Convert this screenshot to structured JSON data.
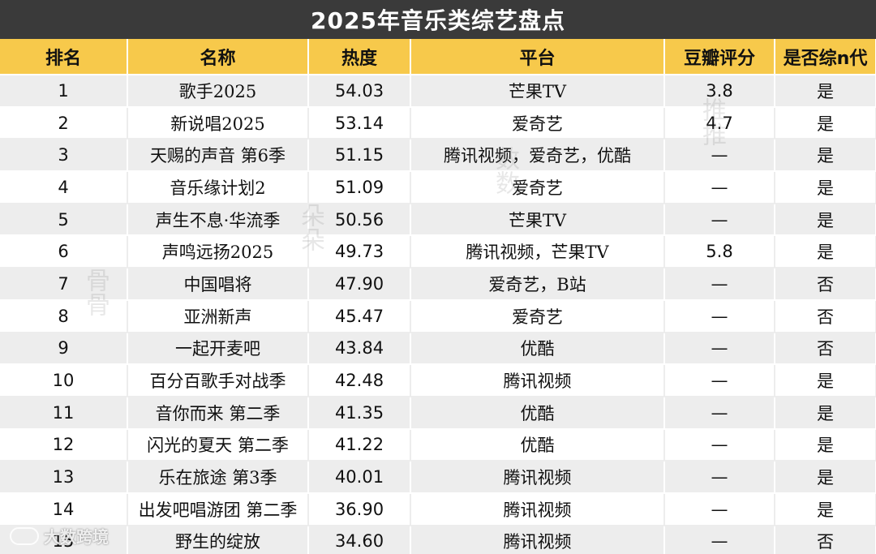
{
  "title": "2025年音乐类综艺盘点",
  "columns": [
    "排名",
    "名称",
    "热度",
    "平台",
    "豆瓣评分",
    "是否综n代"
  ],
  "rows": [
    [
      "1",
      "歌手2025",
      "54.03",
      "芒果TV",
      "3.8",
      "是"
    ],
    [
      "2",
      "新说唱2025",
      "53.14",
      "爱奇艺",
      "4.7",
      "是"
    ],
    [
      "3",
      "天赐的声音 第6季",
      "51.15",
      "腾讯视频，爱奇艺，优酷",
      "—",
      "是"
    ],
    [
      "4",
      "音乐缘计划2",
      "51.09",
      "爱奇艺",
      "—",
      "是"
    ],
    [
      "5",
      "声生不息·华流季",
      "50.56",
      "芒果TV",
      "—",
      "是"
    ],
    [
      "6",
      "声鸣远扬2025",
      "49.73",
      "腾讯视频，芒果TV",
      "5.8",
      "是"
    ],
    [
      "7",
      "中国唱将",
      "47.90",
      "爱奇艺，B站",
      "—",
      "否"
    ],
    [
      "8",
      "亚洲新声",
      "45.47",
      "爱奇艺",
      "—",
      "否"
    ],
    [
      "9",
      "一起开麦吧",
      "43.84",
      "优酷",
      "—",
      "否"
    ],
    [
      "10",
      "百分百歌手对战季",
      "42.48",
      "腾讯视频",
      "—",
      "是"
    ],
    [
      "11",
      "音你而来 第二季",
      "41.35",
      "优酷",
      "—",
      "是"
    ],
    [
      "12",
      "闪光的夏天 第二季",
      "41.22",
      "优酷",
      "—",
      "是"
    ],
    [
      "13",
      "乐在旅途 第3季",
      "40.01",
      "腾讯视频",
      "—",
      "是"
    ],
    [
      "14",
      "出发吧唱游团 第二季",
      "36.90",
      "腾讯视频",
      "—",
      "是"
    ],
    [
      "15",
      "野生的绽放",
      "34.60",
      "腾讯视频",
      "—",
      "否"
    ]
  ],
  "watermarks": [
    "骨骨",
    "朵朵",
    "数数",
    "推推"
  ],
  "brand": "大数跨境",
  "colors": {
    "title_bg": "#3a3a3a",
    "header_bg": "#f7c94b",
    "stripe": "#ededed"
  }
}
